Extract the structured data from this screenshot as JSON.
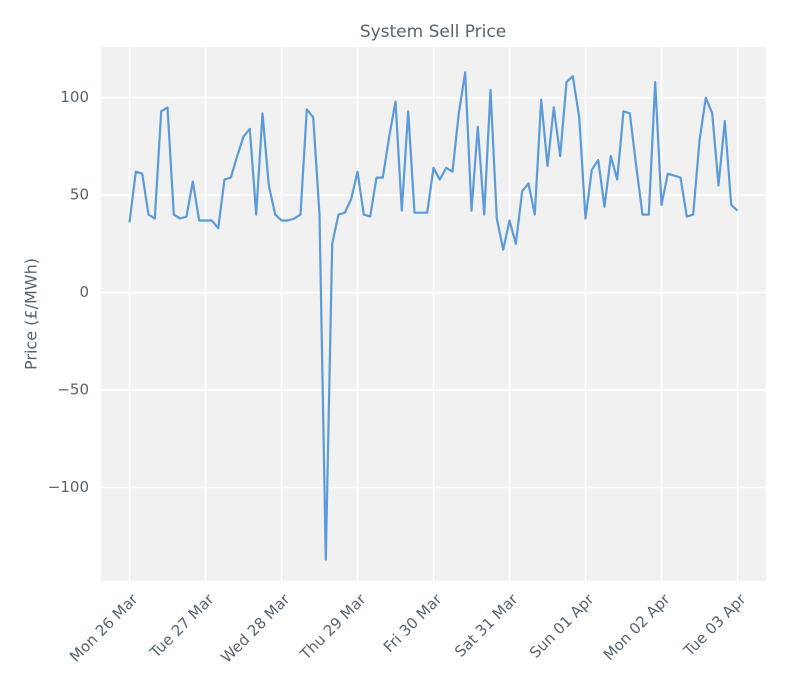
{
  "chart_data": {
    "type": "line",
    "title": "System Sell Price",
    "ylabel": "Price (£/MWh)",
    "x": [
      0,
      2,
      4,
      6,
      8,
      10,
      12,
      14,
      16,
      18,
      20,
      22,
      24,
      26,
      28,
      30,
      32,
      34,
      36,
      38,
      40,
      42,
      44,
      46,
      48,
      50,
      52,
      54,
      56,
      58,
      60,
      62,
      64,
      66,
      68,
      70,
      72,
      74,
      76,
      78,
      80,
      82,
      84,
      86,
      88,
      90,
      92,
      94,
      96,
      98,
      100,
      102,
      104,
      106,
      108,
      110,
      112,
      114,
      116,
      118,
      120,
      122,
      124,
      126,
      128,
      130,
      132,
      134,
      136,
      138,
      140,
      142,
      144,
      146,
      148,
      150,
      152,
      154,
      156,
      158,
      160,
      162,
      164,
      166,
      168,
      170,
      172,
      174,
      176,
      178,
      180,
      182,
      184,
      186,
      188,
      190,
      192
    ],
    "values": [
      36,
      62,
      61,
      40,
      38,
      93,
      95,
      40,
      38,
      39,
      57,
      37,
      37,
      37,
      33,
      58,
      59,
      70,
      80,
      84,
      40,
      92,
      55,
      40,
      37,
      37,
      38,
      40,
      94,
      90,
      40,
      -137,
      25,
      40,
      41,
      48,
      62,
      40,
      39,
      59,
      59,
      80,
      98,
      42,
      93,
      41,
      41,
      41,
      64,
      58,
      64,
      62,
      92,
      113,
      42,
      85,
      40,
      104,
      38,
      22,
      37,
      25,
      52,
      56,
      40,
      99,
      65,
      95,
      70,
      108,
      111,
      90,
      38,
      63,
      68,
      44,
      70,
      58,
      93,
      92,
      65,
      40,
      40,
      108,
      45,
      61,
      60,
      59,
      39,
      40,
      78,
      100,
      92,
      55,
      88,
      45,
      42
    ],
    "color": "#5b9bd9",
    "xlim": [
      -9,
      201
    ],
    "xticks": [
      {
        "value": 0,
        "label": "Mon 26 Mar"
      },
      {
        "value": 24,
        "label": "Tue 27 Mar"
      },
      {
        "value": 48,
        "label": "Wed 28 Mar"
      },
      {
        "value": 72,
        "label": "Thu 29 Mar"
      },
      {
        "value": 96,
        "label": "Fri 30 Mar"
      },
      {
        "value": 120,
        "label": "Sat 31 Mar"
      },
      {
        "value": 144,
        "label": "Sun 01 Apr"
      },
      {
        "value": 168,
        "label": "Mon 02 Apr"
      },
      {
        "value": 192,
        "label": "Tue 03 Apr"
      }
    ],
    "ylim": [
      -148,
      126
    ],
    "yticks": [
      {
        "value": -100,
        "label": "−100"
      },
      {
        "value": -50,
        "label": "−50"
      },
      0,
      50,
      100
    ],
    "grid": true
  }
}
